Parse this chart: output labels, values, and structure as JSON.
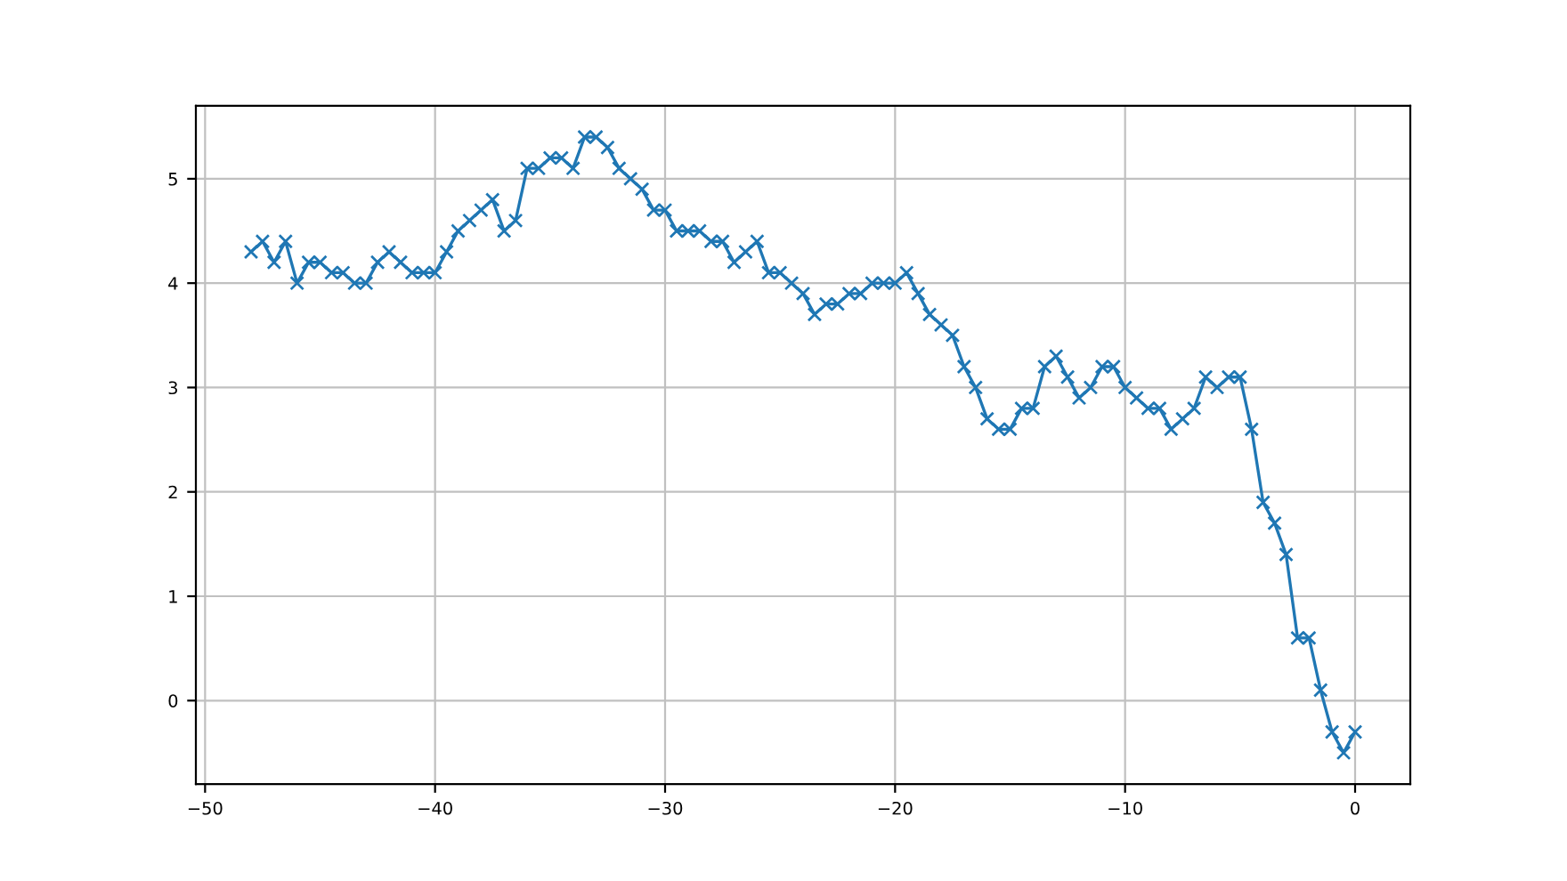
{
  "chart_data": {
    "type": "line",
    "x": [
      -48,
      -47.5,
      -47,
      -46.5,
      -46,
      -45.5,
      -45,
      -44.5,
      -44,
      -43.5,
      -43,
      -42.5,
      -42,
      -41.5,
      -41,
      -40.5,
      -40,
      -39.5,
      -39,
      -38.5,
      -38,
      -37.5,
      -37,
      -36.5,
      -36,
      -35.5,
      -35,
      -34.5,
      -34,
      -33.5,
      -33,
      -32.5,
      -32,
      -31.5,
      -31,
      -30.5,
      -30,
      -29.5,
      -29,
      -28.5,
      -28,
      -27.5,
      -27,
      -26.5,
      -26,
      -25.5,
      -25,
      -24.5,
      -24,
      -23.5,
      -23,
      -22.5,
      -22,
      -21.5,
      -21,
      -20.5,
      -20,
      -19.5,
      -19,
      -18.5,
      -18,
      -17.5,
      -17,
      -16.5,
      -16,
      -15.5,
      -15,
      -14.5,
      -14,
      -13.5,
      -13,
      -12.5,
      -12,
      -11.5,
      -11,
      -10.5,
      -10,
      -9.5,
      -9,
      -8.5,
      -8,
      -7.5,
      -7,
      -6.5,
      -6,
      -5.5,
      -5,
      -4.5,
      -4,
      -3.5,
      -3,
      -2.5,
      -2,
      -1.5,
      -1,
      -0.5,
      0
    ],
    "series": [
      {
        "color": "#1f77b4",
        "values": [
          4.3,
          4.4,
          4.2,
          4.4,
          4.0,
          4.2,
          4.2,
          4.1,
          4.1,
          4.0,
          4.0,
          4.2,
          4.3,
          4.2,
          4.1,
          4.1,
          4.1,
          4.3,
          4.5,
          4.6,
          4.7,
          4.8,
          4.5,
          4.6,
          5.1,
          5.1,
          5.2,
          5.2,
          5.1,
          5.4,
          5.4,
          5.3,
          5.1,
          5.0,
          4.9,
          4.7,
          4.7,
          4.5,
          4.5,
          4.5,
          4.4,
          4.4,
          4.2,
          4.3,
          4.4,
          4.1,
          4.1,
          4.0,
          3.9,
          3.7,
          3.8,
          3.8,
          3.9,
          3.9,
          4.0,
          4.0,
          4.0,
          4.1,
          3.9,
          3.7,
          3.6,
          3.5,
          3.2,
          3.0,
          2.7,
          2.6,
          2.6,
          2.8,
          2.8,
          3.2,
          3.3,
          3.1,
          2.9,
          3.0,
          3.2,
          3.2,
          3.0,
          2.9,
          2.8,
          2.8,
          2.6,
          2.7,
          2.8,
          3.1,
          3.0,
          3.1,
          3.1,
          2.6,
          1.9,
          1.7,
          1.4,
          0.6,
          0.6,
          0.1,
          -0.3,
          -0.5,
          -0.3
        ]
      }
    ],
    "xlim": [
      -50.4,
      2.4
    ],
    "xticks": [
      -50,
      -40,
      -30,
      -20,
      -10,
      0
    ],
    "ylim": [
      -0.8,
      5.7
    ],
    "yticks": [
      0,
      1,
      2,
      3,
      4,
      5
    ],
    "grid": true,
    "marker": "cross",
    "line_style": "solid"
  }
}
